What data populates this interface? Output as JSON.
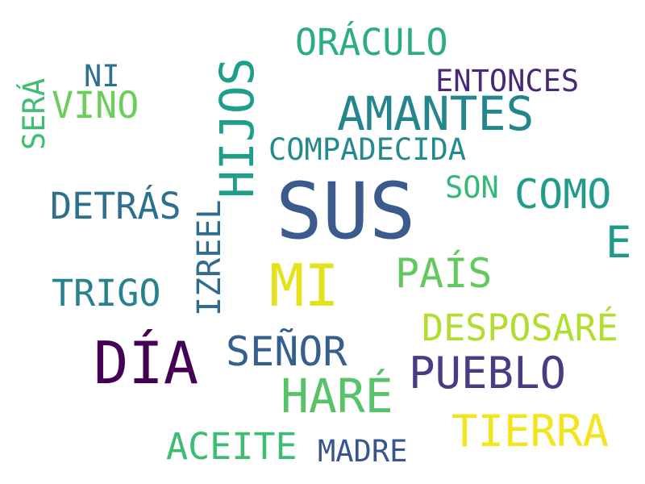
{
  "colors": {
    "background": "#ffffff",
    "palette": [
      "#440154",
      "#46327e",
      "#365c8d",
      "#277f8e",
      "#1fa187",
      "#4ac16d",
      "#a0da39",
      "#fde725"
    ]
  },
  "words": {
    "sus": "SUS",
    "dia": "DÍA",
    "mi": "MI",
    "hijos": "HIJOS",
    "amantes": "AMANTES",
    "hare": "HARÉ",
    "senor": "SEÑOR",
    "pueblo": "PUEBLO",
    "tierra": "TIERRA",
    "como": "COMO",
    "pais": "PAÍS",
    "desposare": "DESPOSARÉ",
    "detras": "DETRÁS",
    "trigo": "TRIGO",
    "aceite": "ACEITE",
    "oraculo": "ORÁCULO",
    "compadecida": "COMPADECIDA",
    "entonces": "ENTONCES",
    "vino": "VINO",
    "izreel": "IZREEL",
    "e": "E",
    "son": "SON",
    "madre": "MADRE",
    "ni": "NI",
    "sera": "SERÁ"
  }
}
